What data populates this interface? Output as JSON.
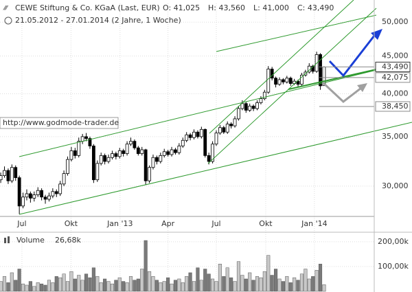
{
  "chart_data": {
    "type": "candlestick",
    "title": "CEWE Stiftung & Co. KGaA (Last, EUR)",
    "ohlc_labels": [
      "O: 41,025",
      "H: 43,560",
      "L: 41,000",
      "C: 43,490"
    ],
    "subtitle": "21.05.2012 - 27.01.2014 (2 Jahre, 1 Woche)",
    "watermark": "http://www.godmode-trader.de",
    "log_scale": true,
    "grid": true,
    "up_color": "#ffffff",
    "down_color": "#000000",
    "candles": [
      [
        30600,
        31300,
        30300,
        31000
      ],
      [
        31000,
        31900,
        30800,
        31500
      ],
      [
        31500,
        31700,
        30200,
        30500
      ],
      [
        30500,
        32100,
        30300,
        31800
      ],
      [
        31800,
        32000,
        30500,
        30800
      ],
      [
        30800,
        31000,
        27500,
        28200
      ],
      [
        28200,
        29400,
        28000,
        29000
      ],
      [
        29000,
        29700,
        28700,
        29300
      ],
      [
        29300,
        29500,
        28500,
        28900
      ],
      [
        28900,
        29500,
        28600,
        29200
      ],
      [
        29200,
        29900,
        29000,
        29600
      ],
      [
        29600,
        29800,
        28700,
        29000
      ],
      [
        29000,
        29200,
        28400,
        28800
      ],
      [
        28800,
        29400,
        28600,
        29100
      ],
      [
        29100,
        29800,
        28900,
        29500
      ],
      [
        29500,
        29700,
        29000,
        29300
      ],
      [
        29300,
        30500,
        29100,
        30200
      ],
      [
        30200,
        31500,
        30000,
        31200
      ],
      [
        31200,
        32900,
        31000,
        32600
      ],
      [
        32600,
        33900,
        32400,
        33500
      ],
      [
        33500,
        33800,
        32700,
        33000
      ],
      [
        33000,
        34900,
        32800,
        34500
      ],
      [
        34500,
        35300,
        34200,
        35000
      ],
      [
        35000,
        35400,
        34500,
        34800
      ],
      [
        34800,
        35000,
        33700,
        34000
      ],
      [
        34000,
        34200,
        30300,
        30600
      ],
      [
        30600,
        32500,
        30400,
        32200
      ],
      [
        32200,
        33300,
        32000,
        33000
      ],
      [
        33000,
        33200,
        32100,
        32400
      ],
      [
        32400,
        33100,
        32200,
        32800
      ],
      [
        32800,
        33500,
        32600,
        33200
      ],
      [
        33200,
        33400,
        32600,
        32900
      ],
      [
        32900,
        33800,
        32700,
        33500
      ],
      [
        33500,
        33700,
        32900,
        33200
      ],
      [
        33200,
        34500,
        33000,
        34200
      ],
      [
        34200,
        34900,
        34000,
        34500
      ],
      [
        34500,
        34700,
        33600,
        33800
      ],
      [
        33800,
        34000,
        33000,
        33200
      ],
      [
        33200,
        33900,
        33000,
        33600
      ],
      [
        33600,
        33700,
        30100,
        30500
      ],
      [
        30500,
        32000,
        30300,
        31800
      ],
      [
        31800,
        33100,
        31600,
        32800
      ],
      [
        32800,
        33000,
        32100,
        32400
      ],
      [
        32400,
        33300,
        32200,
        33000
      ],
      [
        33000,
        33700,
        32800,
        33400
      ],
      [
        33400,
        33600,
        32900,
        33100
      ],
      [
        33100,
        33900,
        32900,
        33600
      ],
      [
        33600,
        33800,
        33100,
        33300
      ],
      [
        33300,
        34300,
        33100,
        34000
      ],
      [
        34000,
        34900,
        33800,
        34600
      ],
      [
        34600,
        35500,
        34400,
        35200
      ],
      [
        35200,
        35400,
        34600,
        34900
      ],
      [
        34900,
        35800,
        34700,
        35500
      ],
      [
        35500,
        35700,
        34800,
        35000
      ],
      [
        35000,
        36100,
        34800,
        35800
      ],
      [
        35800,
        35900,
        32800,
        33000
      ],
      [
        33000,
        33300,
        32100,
        32400
      ],
      [
        32400,
        34500,
        32200,
        34200
      ],
      [
        34200,
        35700,
        34000,
        35400
      ],
      [
        35400,
        36300,
        35200,
        36000
      ],
      [
        36000,
        36200,
        35300,
        35500
      ],
      [
        35500,
        36700,
        35300,
        36400
      ],
      [
        36400,
        36600,
        35900,
        36200
      ],
      [
        36200,
        37300,
        36000,
        37000
      ],
      [
        37000,
        38500,
        36800,
        38200
      ],
      [
        38200,
        39200,
        38000,
        38800
      ],
      [
        38800,
        39000,
        37700,
        38000
      ],
      [
        38000,
        38800,
        37800,
        38500
      ],
      [
        38500,
        38700,
        37900,
        38200
      ],
      [
        38200,
        39200,
        38000,
        38900
      ],
      [
        38900,
        39700,
        38700,
        39400
      ],
      [
        39400,
        40500,
        39200,
        40200
      ],
      [
        40200,
        43600,
        40000,
        43200
      ],
      [
        43200,
        43500,
        41700,
        42000
      ],
      [
        42000,
        42200,
        40800,
        41200
      ],
      [
        41200,
        42100,
        41000,
        41800
      ],
      [
        41800,
        42000,
        41200,
        41500
      ],
      [
        41500,
        42300,
        41300,
        42000
      ],
      [
        42000,
        42200,
        41000,
        41300
      ],
      [
        41300,
        41900,
        41100,
        41600
      ],
      [
        41600,
        41800,
        40900,
        41200
      ],
      [
        41200,
        42700,
        41000,
        42400
      ],
      [
        42400,
        43100,
        42200,
        42800
      ],
      [
        42800,
        44000,
        42600,
        43600
      ],
      [
        43600,
        43800,
        42600,
        42900
      ],
      [
        42900,
        45600,
        42700,
        45200
      ],
      [
        45200,
        45400,
        40500,
        41000
      ],
      [
        41025,
        43560,
        41000,
        43490
      ]
    ],
    "xlim": [
      -0.2,
      100.5
    ],
    "xticks": [
      {
        "value": 5.7,
        "label": "Jul"
      },
      {
        "value": 18.9,
        "label": "Okt"
      },
      {
        "value": 32.1,
        "label": "Jan '13"
      },
      {
        "value": 45,
        "label": "Apr"
      },
      {
        "value": 58,
        "label": "Jul"
      },
      {
        "value": 71.3,
        "label": "Okt"
      },
      {
        "value": 84.4,
        "label": "Jan '14"
      }
    ],
    "ylim": [
      27300,
      53000
    ],
    "yticks": [
      {
        "value": 30000,
        "label": "30,000"
      },
      {
        "value": 35000,
        "label": "35,000"
      },
      {
        "value": 40000,
        "label": "40,000"
      },
      {
        "value": 45000,
        "label": "45,000"
      },
      {
        "value": 50000,
        "label": "50,000"
      }
    ],
    "levels": [
      {
        "value": 43490,
        "label": "43,490"
      },
      {
        "value": 42075,
        "label": "42,075"
      },
      {
        "value": 38450,
        "label": "38,450"
      }
    ],
    "volume": {
      "name": "Volume",
      "current_label": "26,68k",
      "up_color": "#c8c8c8",
      "down_color": "#7a7a7a",
      "values": [
        40000,
        60000,
        35000,
        75000,
        45000,
        90000,
        30000,
        25000,
        40000,
        20000,
        35000,
        30000,
        25000,
        45000,
        35000,
        60000,
        55000,
        70000,
        40000,
        80000,
        50000,
        65000,
        45000,
        70000,
        55000,
        95000,
        60000,
        35000,
        50000,
        40000,
        30000,
        45000,
        55000,
        40000,
        35000,
        60000,
        45000,
        50000,
        90000,
        205000,
        80000,
        60000,
        45000,
        35000,
        40000,
        55000,
        30000,
        45000,
        50000,
        35000,
        60000,
        75000,
        40000,
        95000,
        45000,
        90000,
        70000,
        50000,
        40000,
        110000,
        60000,
        95000,
        55000,
        40000,
        120000,
        65000,
        50000,
        75000,
        45000,
        60000,
        55000,
        80000,
        145000,
        65000,
        90000,
        50000,
        40000,
        60000,
        35000,
        55000,
        45000,
        70000,
        90000,
        50000,
        60000,
        85000,
        110000,
        26680
      ],
      "ylim": [
        0,
        219000
      ],
      "yticks": [
        {
          "value": 100000,
          "label": "100,00k"
        },
        {
          "value": 200000,
          "label": "200,00k"
        }
      ]
    }
  }
}
